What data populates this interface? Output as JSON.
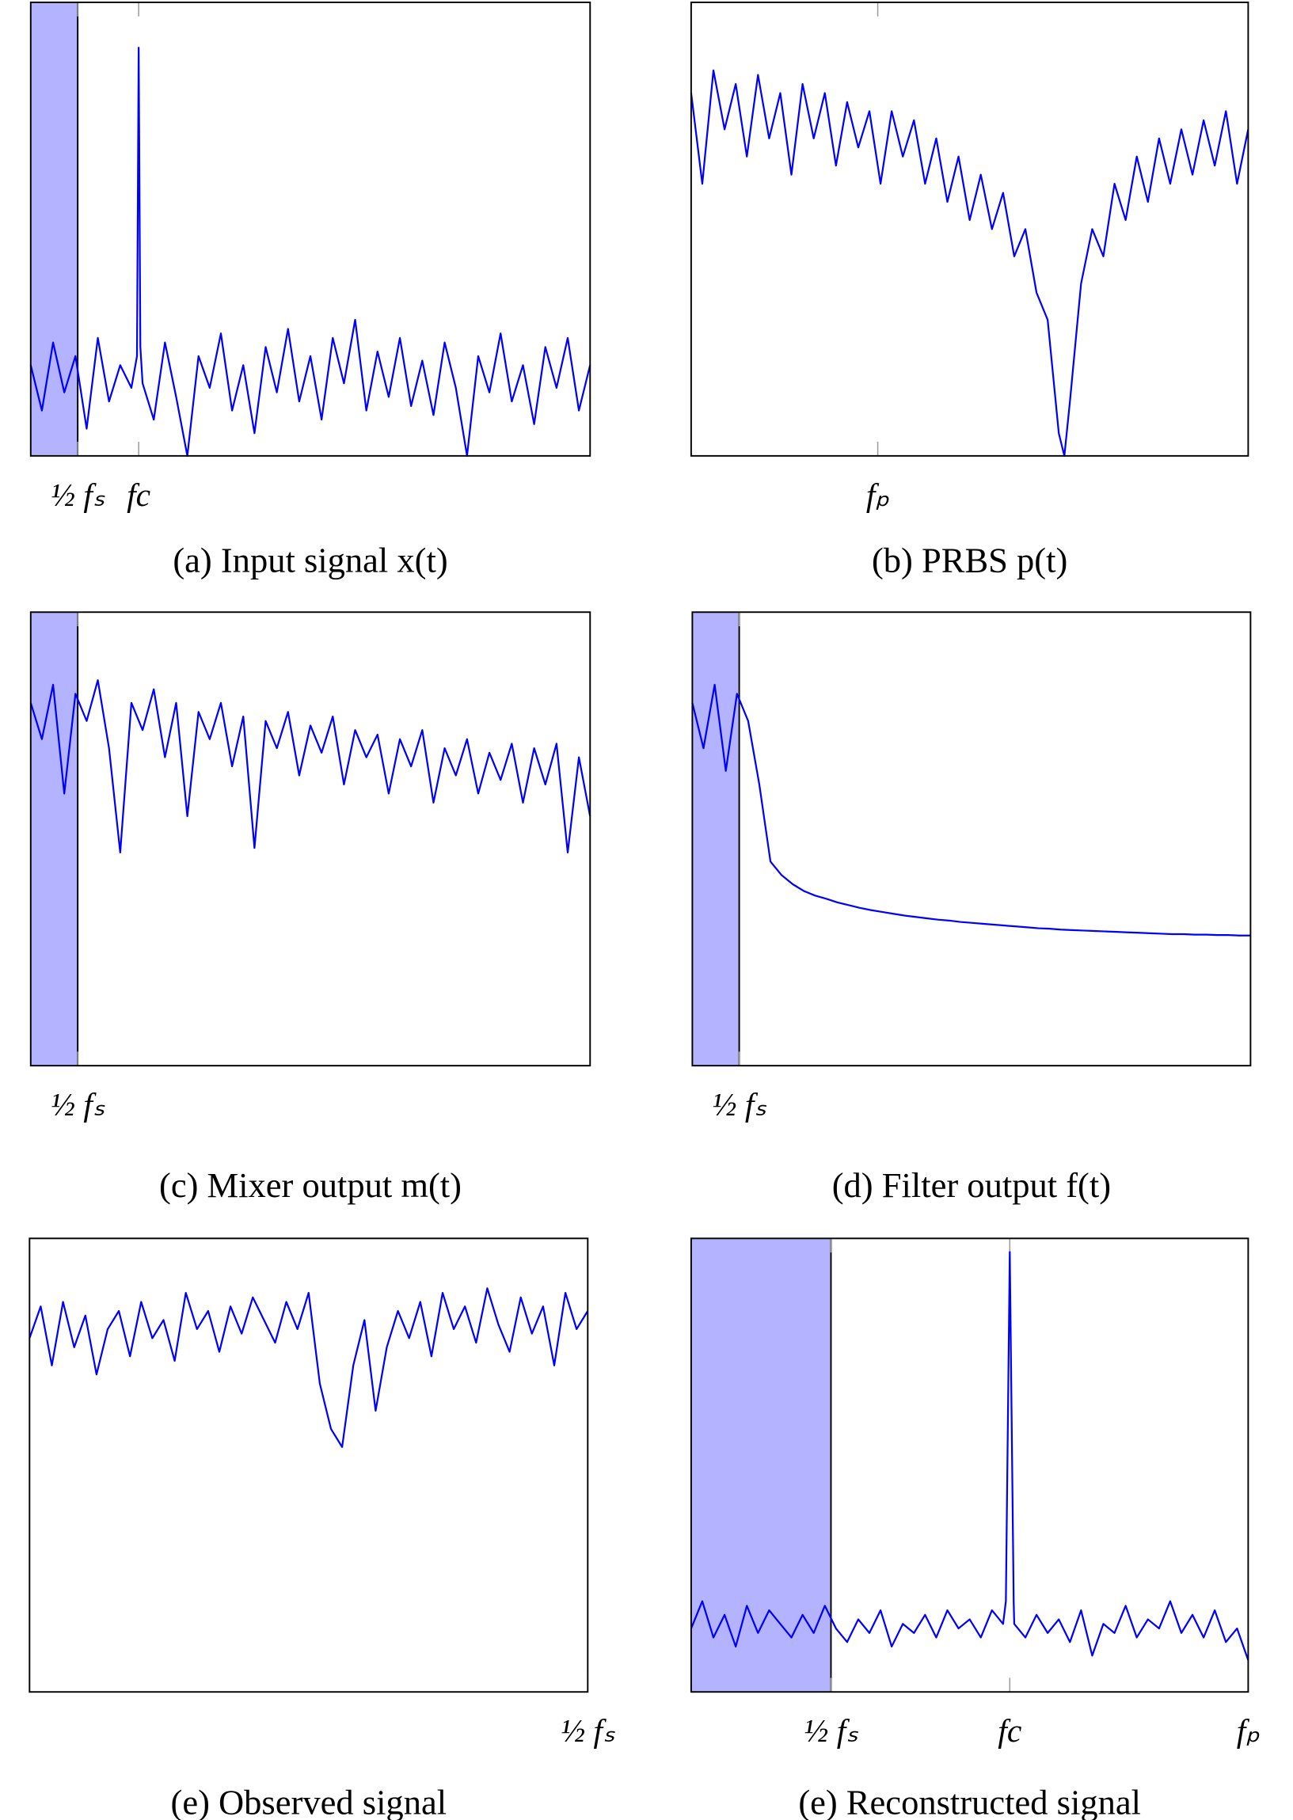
{
  "chart_data": [
    {
      "type": "line",
      "title": "(a) Input signal x(t)",
      "color": "#0000ff",
      "shade": [
        0,
        0.084
      ],
      "shade_color": "#b3b3ff",
      "xlim": [
        0,
        1
      ],
      "ylim": [
        0,
        1
      ],
      "xticks": [
        {
          "value": 0.084,
          "label": "½ fₛ"
        },
        {
          "value": 0.193,
          "label": "fc"
        }
      ],
      "x": [
        0,
        0.02,
        0.04,
        0.06,
        0.08,
        0.1,
        0.12,
        0.14,
        0.16,
        0.18,
        0.19,
        0.193,
        0.196,
        0.2,
        0.22,
        0.24,
        0.26,
        0.28,
        0.3,
        0.32,
        0.34,
        0.36,
        0.38,
        0.4,
        0.42,
        0.44,
        0.46,
        0.48,
        0.5,
        0.52,
        0.54,
        0.56,
        0.58,
        0.6,
        0.62,
        0.64,
        0.66,
        0.68,
        0.7,
        0.72,
        0.74,
        0.76,
        0.78,
        0.8,
        0.82,
        0.84,
        0.86,
        0.88,
        0.9,
        0.92,
        0.94,
        0.96,
        0.98,
        1
      ],
      "values": [
        0.2,
        0.1,
        0.25,
        0.14,
        0.22,
        0.06,
        0.26,
        0.12,
        0.2,
        0.15,
        0.22,
        0.9,
        0.24,
        0.16,
        0.08,
        0.25,
        0.13,
        0.0,
        0.22,
        0.15,
        0.27,
        0.1,
        0.2,
        0.05,
        0.24,
        0.14,
        0.28,
        0.12,
        0.22,
        0.08,
        0.26,
        0.16,
        0.3,
        0.1,
        0.23,
        0.13,
        0.26,
        0.11,
        0.21,
        0.09,
        0.25,
        0.15,
        0.0,
        0.22,
        0.14,
        0.27,
        0.12,
        0.2,
        0.07,
        0.24,
        0.15,
        0.26,
        0.1,
        0.2
      ]
    },
    {
      "type": "line",
      "title": "(b) PRBS p(t)",
      "color": "#0000ff",
      "xlim": [
        0,
        1
      ],
      "ylim": [
        0,
        1
      ],
      "xticks": [
        {
          "value": 0.335,
          "label": "fₚ"
        }
      ],
      "x": [
        0,
        0.02,
        0.04,
        0.06,
        0.08,
        0.1,
        0.12,
        0.14,
        0.16,
        0.18,
        0.2,
        0.22,
        0.24,
        0.26,
        0.28,
        0.3,
        0.32,
        0.34,
        0.36,
        0.38,
        0.4,
        0.42,
        0.44,
        0.46,
        0.48,
        0.5,
        0.52,
        0.54,
        0.56,
        0.58,
        0.6,
        0.62,
        0.64,
        0.66,
        0.67,
        0.68,
        0.7,
        0.72,
        0.74,
        0.76,
        0.78,
        0.8,
        0.82,
        0.84,
        0.86,
        0.88,
        0.9,
        0.92,
        0.94,
        0.96,
        0.98,
        1
      ],
      "values": [
        0.8,
        0.6,
        0.85,
        0.72,
        0.82,
        0.66,
        0.84,
        0.7,
        0.8,
        0.62,
        0.82,
        0.7,
        0.8,
        0.64,
        0.78,
        0.68,
        0.76,
        0.6,
        0.76,
        0.66,
        0.74,
        0.6,
        0.7,
        0.56,
        0.66,
        0.52,
        0.62,
        0.5,
        0.58,
        0.44,
        0.5,
        0.36,
        0.3,
        0.05,
        0.0,
        0.12,
        0.38,
        0.5,
        0.44,
        0.6,
        0.52,
        0.66,
        0.56,
        0.7,
        0.6,
        0.72,
        0.62,
        0.74,
        0.64,
        0.76,
        0.6,
        0.72
      ]
    },
    {
      "type": "line",
      "title": "(c) Mixer output m(t)",
      "color": "#0000ff",
      "shade": [
        0,
        0.084
      ],
      "shade_color": "#b3b3ff",
      "xlim": [
        0,
        1
      ],
      "ylim": [
        0,
        1
      ],
      "xticks": [
        {
          "value": 0.084,
          "label": "½ fₛ"
        }
      ],
      "x": [
        0,
        0.02,
        0.04,
        0.06,
        0.08,
        0.1,
        0.12,
        0.14,
        0.16,
        0.18,
        0.2,
        0.22,
        0.24,
        0.26,
        0.28,
        0.3,
        0.32,
        0.34,
        0.36,
        0.38,
        0.4,
        0.42,
        0.44,
        0.46,
        0.48,
        0.5,
        0.52,
        0.54,
        0.56,
        0.58,
        0.6,
        0.62,
        0.64,
        0.66,
        0.68,
        0.7,
        0.72,
        0.74,
        0.76,
        0.78,
        0.8,
        0.82,
        0.84,
        0.86,
        0.88,
        0.9,
        0.92,
        0.94,
        0.96,
        0.98,
        1
      ],
      "values": [
        0.8,
        0.72,
        0.84,
        0.6,
        0.82,
        0.76,
        0.85,
        0.7,
        0.47,
        0.8,
        0.74,
        0.83,
        0.68,
        0.8,
        0.55,
        0.78,
        0.72,
        0.8,
        0.66,
        0.77,
        0.48,
        0.76,
        0.7,
        0.78,
        0.64,
        0.75,
        0.69,
        0.77,
        0.62,
        0.74,
        0.68,
        0.73,
        0.6,
        0.72,
        0.66,
        0.74,
        0.58,
        0.7,
        0.64,
        0.72,
        0.6,
        0.69,
        0.63,
        0.71,
        0.58,
        0.7,
        0.62,
        0.71,
        0.47,
        0.68,
        0.55
      ]
    },
    {
      "type": "line",
      "title": "(d) Filter output f(t)",
      "color": "#0000ff",
      "shade": [
        0,
        0.084
      ],
      "shade_color": "#b3b3ff",
      "xlim": [
        0,
        1
      ],
      "ylim": [
        0,
        1
      ],
      "xticks": [
        {
          "value": 0.084,
          "label": "½ fₛ"
        }
      ],
      "x": [
        0,
        0.02,
        0.04,
        0.06,
        0.08,
        0.1,
        0.12,
        0.14,
        0.16,
        0.18,
        0.2,
        0.22,
        0.24,
        0.26,
        0.28,
        0.3,
        0.32,
        0.34,
        0.36,
        0.38,
        0.4,
        0.42,
        0.44,
        0.46,
        0.48,
        0.5,
        0.52,
        0.54,
        0.56,
        0.58,
        0.6,
        0.62,
        0.64,
        0.66,
        0.68,
        0.7,
        0.72,
        0.74,
        0.76,
        0.78,
        0.8,
        0.82,
        0.84,
        0.86,
        0.88,
        0.9,
        0.92,
        0.94,
        0.96,
        0.98,
        1
      ],
      "values": [
        0.8,
        0.7,
        0.84,
        0.65,
        0.82,
        0.76,
        0.62,
        0.45,
        0.42,
        0.4,
        0.385,
        0.375,
        0.368,
        0.36,
        0.354,
        0.348,
        0.343,
        0.339,
        0.335,
        0.331,
        0.328,
        0.325,
        0.322,
        0.32,
        0.317,
        0.315,
        0.313,
        0.311,
        0.309,
        0.307,
        0.305,
        0.303,
        0.302,
        0.3,
        0.299,
        0.298,
        0.297,
        0.296,
        0.295,
        0.294,
        0.293,
        0.292,
        0.291,
        0.29,
        0.29,
        0.289,
        0.289,
        0.288,
        0.288,
        0.287,
        0.287
      ]
    },
    {
      "type": "line",
      "title": "(e) Observed signal",
      "color": "#0000ff",
      "xlim": [
        0,
        1
      ],
      "ylim": [
        0,
        1
      ],
      "xticks": [
        {
          "value": 1,
          "label": "½ fₛ"
        }
      ],
      "x": [
        0,
        0.02,
        0.04,
        0.06,
        0.08,
        0.1,
        0.12,
        0.14,
        0.16,
        0.18,
        0.2,
        0.22,
        0.24,
        0.26,
        0.28,
        0.3,
        0.32,
        0.34,
        0.36,
        0.38,
        0.4,
        0.42,
        0.44,
        0.46,
        0.48,
        0.5,
        0.52,
        0.54,
        0.56,
        0.58,
        0.6,
        0.62,
        0.64,
        0.66,
        0.68,
        0.7,
        0.72,
        0.74,
        0.76,
        0.78,
        0.8,
        0.82,
        0.84,
        0.86,
        0.88,
        0.9,
        0.92,
        0.94,
        0.96,
        0.98,
        1
      ],
      "values": [
        0.78,
        0.85,
        0.72,
        0.86,
        0.76,
        0.83,
        0.7,
        0.8,
        0.84,
        0.74,
        0.86,
        0.78,
        0.82,
        0.73,
        0.88,
        0.8,
        0.84,
        0.75,
        0.85,
        0.79,
        0.87,
        0.82,
        0.77,
        0.86,
        0.8,
        0.88,
        0.68,
        0.58,
        0.54,
        0.72,
        0.82,
        0.62,
        0.76,
        0.84,
        0.78,
        0.86,
        0.74,
        0.88,
        0.8,
        0.85,
        0.77,
        0.89,
        0.81,
        0.75,
        0.87,
        0.79,
        0.85,
        0.72,
        0.88,
        0.8,
        0.84
      ]
    },
    {
      "type": "line",
      "title": "(e) Reconstructed signal",
      "color": "#0000ff",
      "shade": [
        0,
        0.251
      ],
      "shade_color": "#b3b3ff",
      "xlim": [
        0,
        1
      ],
      "ylim": [
        0,
        1
      ],
      "xticks": [
        {
          "value": 0.251,
          "label": "½ fₛ"
        },
        {
          "value": 0.572,
          "label": "fc"
        },
        {
          "value": 1,
          "label": "fₚ"
        }
      ],
      "x": [
        0,
        0.02,
        0.04,
        0.06,
        0.08,
        0.1,
        0.12,
        0.14,
        0.16,
        0.18,
        0.2,
        0.22,
        0.24,
        0.26,
        0.28,
        0.3,
        0.32,
        0.34,
        0.36,
        0.38,
        0.4,
        0.42,
        0.44,
        0.46,
        0.48,
        0.5,
        0.52,
        0.54,
        0.56,
        0.565,
        0.572,
        0.579,
        0.58,
        0.6,
        0.62,
        0.64,
        0.66,
        0.68,
        0.7,
        0.72,
        0.74,
        0.76,
        0.78,
        0.8,
        0.82,
        0.84,
        0.86,
        0.88,
        0.9,
        0.92,
        0.94,
        0.96,
        0.98,
        1
      ],
      "values": [
        0.14,
        0.2,
        0.12,
        0.17,
        0.1,
        0.19,
        0.13,
        0.18,
        0.15,
        0.12,
        0.17,
        0.13,
        0.19,
        0.14,
        0.11,
        0.16,
        0.13,
        0.18,
        0.1,
        0.15,
        0.13,
        0.17,
        0.12,
        0.18,
        0.14,
        0.16,
        0.12,
        0.18,
        0.15,
        0.2,
        0.97,
        0.2,
        0.15,
        0.12,
        0.17,
        0.13,
        0.16,
        0.11,
        0.18,
        0.08,
        0.15,
        0.13,
        0.19,
        0.12,
        0.16,
        0.14,
        0.2,
        0.13,
        0.17,
        0.12,
        0.18,
        0.11,
        0.14,
        0.07
      ]
    }
  ]
}
